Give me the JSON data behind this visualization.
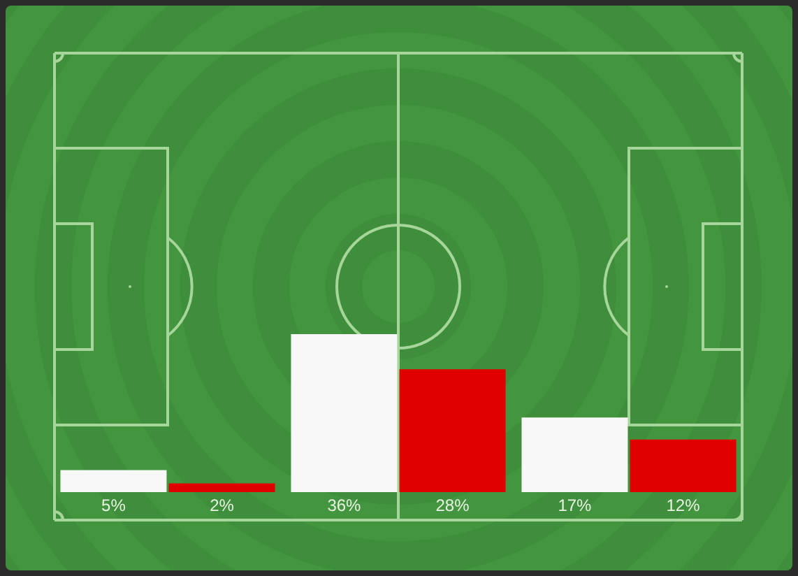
{
  "chart_data": {
    "type": "bar",
    "categories": [
      null,
      null,
      null
    ],
    "series": [
      {
        "color": "#f8f8f8",
        "values": [
          5,
          36,
          17
        ],
        "value_labels": [
          "5%",
          "36%",
          "17%"
        ]
      },
      {
        "color": "#e00000",
        "values": [
          2,
          28,
          12
        ],
        "value_labels": [
          "2%",
          "28%",
          "12%"
        ]
      }
    ],
    "ylim": [
      0,
      100
    ],
    "tick_labels": false,
    "grid": false,
    "legend": false
  }
}
